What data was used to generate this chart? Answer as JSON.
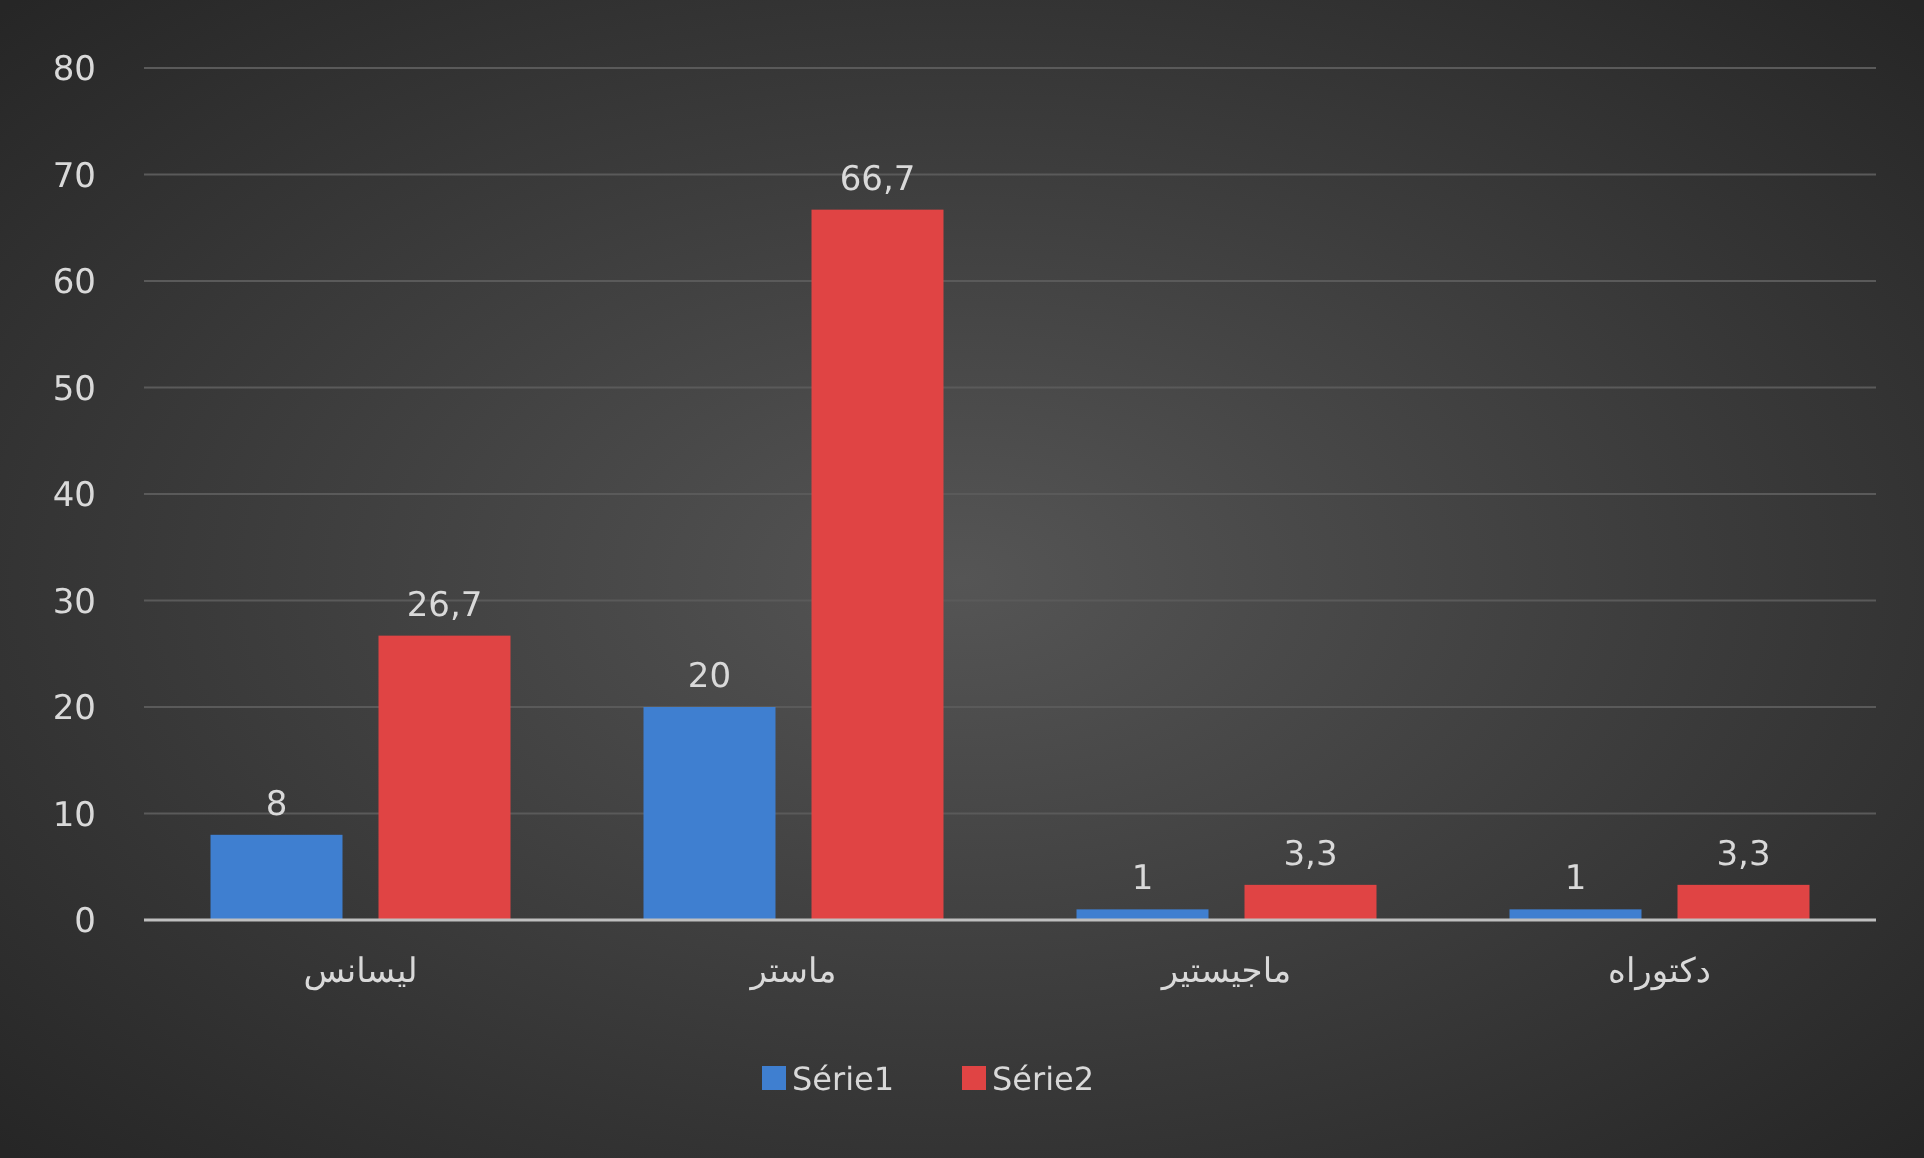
{
  "chart_data": {
    "type": "bar",
    "categories": [
      "ليسانس",
      "ماستر",
      "ماجيستير",
      "دكتوراه"
    ],
    "series": [
      {
        "name": "Série1",
        "color": "#3f7fd0",
        "values": [
          8,
          20,
          1,
          1
        ],
        "value_labels": [
          "8",
          "20",
          "1",
          "1"
        ]
      },
      {
        "name": "Série2",
        "color": "#e04444",
        "values": [
          26.7,
          66.7,
          3.3,
          3.3
        ],
        "value_labels": [
          "26,7",
          "66,7",
          "3,3",
          "3,3"
        ]
      }
    ],
    "ylim": [
      0,
      80
    ],
    "yticks": [
      0,
      10,
      20,
      30,
      40,
      50,
      60,
      70,
      80
    ],
    "grid": "y",
    "legend": "bottom"
  }
}
